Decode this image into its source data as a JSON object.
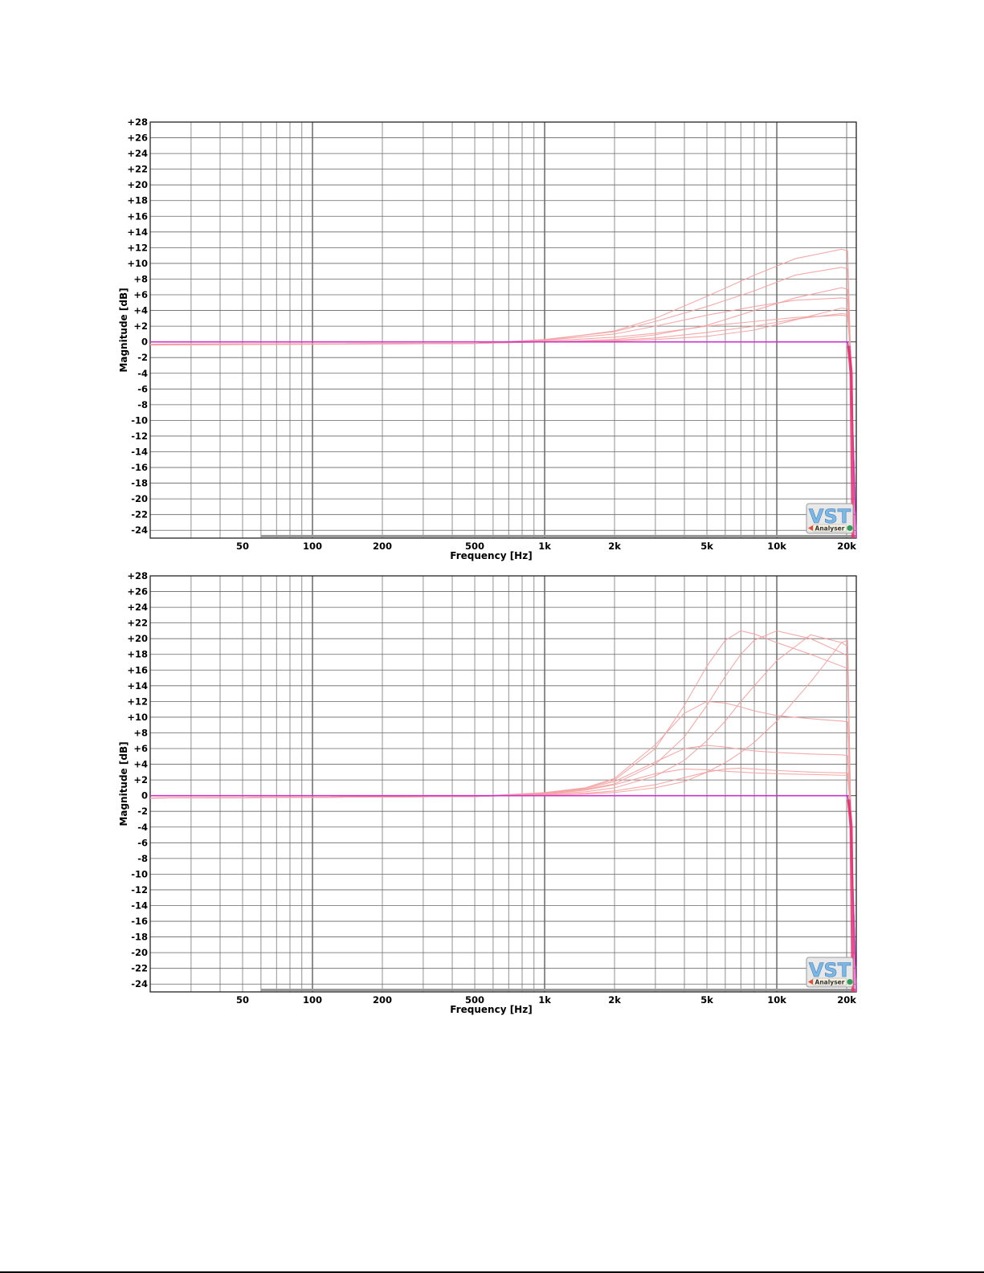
{
  "chart_data": [
    {
      "type": "line",
      "xscale": "log",
      "xlim": [
        20,
        22000
      ],
      "ylim": [
        -25,
        28
      ],
      "grid": true,
      "xlabel": "Frequency [Hz]",
      "ylabel": "Magnitude [dB]",
      "xticks": [
        {
          "value": 50,
          "label": "50"
        },
        {
          "value": 100,
          "label": "100"
        },
        {
          "value": 200,
          "label": "200"
        },
        {
          "value": 500,
          "label": "500"
        },
        {
          "value": 1000,
          "label": "1k"
        },
        {
          "value": 2000,
          "label": "2k"
        },
        {
          "value": 5000,
          "label": "5k"
        },
        {
          "value": 10000,
          "label": "10k"
        },
        {
          "value": 20000,
          "label": "20k"
        }
      ],
      "yticks": [
        28,
        26,
        24,
        22,
        20,
        18,
        16,
        14,
        12,
        10,
        8,
        6,
        4,
        2,
        0,
        -2,
        -4,
        -6,
        -8,
        -10,
        -12,
        -14,
        -16,
        -18,
        -20,
        -22,
        -24
      ],
      "ytick_labels": [
        "+28",
        "+26",
        "+24",
        "+22",
        "+20",
        "+18",
        "+16",
        "+14",
        "+12",
        "+10",
        "+8",
        "+6",
        "+4",
        "+2",
        "0",
        "-2",
        "-4",
        "-6",
        "-8",
        "-10",
        "-12",
        "-14",
        "-16",
        "-18",
        "-20",
        "-22",
        "-24"
      ],
      "logo": {
        "text": "VST",
        "subtext": "Analyser"
      },
      "colors": {
        "curves": "#f4a0a0",
        "reference": "#cc33cc",
        "rolloff": "#e8306a",
        "grid": "#555555"
      },
      "series": [
        {
          "x": [
            20,
            500,
            1000,
            2000,
            3000,
            5000,
            8000,
            12000,
            19000,
            20200,
            20800,
            22000
          ],
          "y": [
            -0.4,
            -0.2,
            0.3,
            1.3,
            2.6,
            4.5,
            6.5,
            8.5,
            9.5,
            9.3,
            -2,
            -25
          ]
        },
        {
          "x": [
            20,
            500,
            1000,
            2000,
            3000,
            5000,
            8000,
            12000,
            19000,
            20200,
            20800,
            22000
          ],
          "y": [
            -0.3,
            -0.2,
            0.2,
            1.0,
            2.0,
            3.4,
            4.5,
            5.3,
            5.6,
            5.5,
            -2,
            -25
          ]
        },
        {
          "x": [
            20,
            500,
            1000,
            2000,
            3000,
            5000,
            8000,
            12000,
            19000,
            20200,
            20800,
            22000
          ],
          "y": [
            -0.3,
            -0.2,
            0.1,
            0.6,
            1.1,
            2.0,
            2.6,
            3.1,
            3.4,
            3.3,
            -2,
            -25
          ]
        },
        {
          "x": [
            20,
            500,
            1000,
            2000,
            3000,
            5000,
            8000,
            12000,
            19000,
            20200,
            20800,
            22000
          ],
          "y": [
            -0.4,
            -0.2,
            0.2,
            1.4,
            3.0,
            5.8,
            8.5,
            10.6,
            11.8,
            11.6,
            -2,
            -25
          ]
        },
        {
          "x": [
            20,
            500,
            1000,
            2000,
            3000,
            5000,
            8000,
            12000,
            19000,
            20200,
            20800,
            22000
          ],
          "y": [
            -0.3,
            -0.2,
            0.0,
            0.3,
            0.9,
            2.1,
            4.0,
            5.6,
            6.9,
            6.7,
            -2,
            -25
          ]
        },
        {
          "x": [
            20,
            500,
            1000,
            2000,
            3000,
            5000,
            8000,
            12000,
            19000,
            20200,
            20800,
            22000
          ],
          "y": [
            -0.3,
            -0.2,
            0.0,
            0.2,
            0.5,
            1.2,
            2.0,
            2.9,
            3.6,
            3.5,
            -2,
            -25
          ]
        },
        {
          "x": [
            20,
            500,
            1000,
            2000,
            3000,
            5000,
            8000,
            12000,
            19000,
            20200,
            20800,
            22000
          ],
          "y": [
            -0.3,
            -0.2,
            0.0,
            0.1,
            0.3,
            0.7,
            1.5,
            2.8,
            4.3,
            4.2,
            -2,
            -25
          ]
        },
        {
          "x": [
            20,
            500,
            1000,
            2000,
            3000,
            5000,
            8000,
            12000,
            19000,
            20200,
            20800,
            22000
          ],
          "y": [
            0,
            0,
            0,
            0,
            0,
            0,
            0,
            0,
            0,
            0,
            -3,
            -25
          ]
        }
      ]
    },
    {
      "type": "line",
      "xscale": "log",
      "xlim": [
        20,
        22000
      ],
      "ylim": [
        -25,
        28
      ],
      "grid": true,
      "xlabel": "Frequency [Hz]",
      "ylabel": "Magnitude [dB]",
      "xticks": [
        {
          "value": 50,
          "label": "50"
        },
        {
          "value": 100,
          "label": "100"
        },
        {
          "value": 200,
          "label": "200"
        },
        {
          "value": 500,
          "label": "500"
        },
        {
          "value": 1000,
          "label": "1k"
        },
        {
          "value": 2000,
          "label": "2k"
        },
        {
          "value": 5000,
          "label": "5k"
        },
        {
          "value": 10000,
          "label": "10k"
        },
        {
          "value": 20000,
          "label": "20k"
        }
      ],
      "yticks": [
        28,
        26,
        24,
        22,
        20,
        18,
        16,
        14,
        12,
        10,
        8,
        6,
        4,
        2,
        0,
        -2,
        -4,
        -6,
        -8,
        -10,
        -12,
        -14,
        -16,
        -18,
        -20,
        -22,
        -24
      ],
      "ytick_labels": [
        "+28",
        "+26",
        "+24",
        "+22",
        "+20",
        "+18",
        "+16",
        "+14",
        "+12",
        "+10",
        "+8",
        "+6",
        "+4",
        "+2",
        "0",
        "-2",
        "-4",
        "-6",
        "-8",
        "-10",
        "-12",
        "-14",
        "-16",
        "-18",
        "-20",
        "-22",
        "-24"
      ],
      "logo": {
        "text": "VST",
        "subtext": "Analyser"
      },
      "colors": {
        "curves": "#f4a0a0",
        "reference": "#cc33cc",
        "rolloff": "#e8306a",
        "grid": "#555555"
      },
      "series": [
        {
          "x": [
            20,
            500,
            1000,
            1500,
            2000,
            3000,
            4000,
            5000,
            6000,
            7000,
            8000,
            10000,
            14000,
            19000,
            20200,
            20800,
            22000
          ],
          "y": [
            -0.3,
            -0.1,
            0.4,
            1.0,
            2.0,
            6.0,
            11.5,
            16.5,
            19.8,
            21.0,
            20.6,
            19.5,
            18.0,
            16.5,
            16.2,
            -2,
            -25
          ]
        },
        {
          "x": [
            20,
            500,
            1000,
            1500,
            2000,
            3000,
            4000,
            5000,
            6000,
            7000,
            8000,
            10000,
            14000,
            19000,
            20200,
            20800,
            22000
          ],
          "y": [
            -0.3,
            -0.1,
            0.3,
            0.8,
            1.5,
            4.0,
            7.5,
            11.5,
            15.2,
            18.0,
            19.8,
            21.0,
            20.0,
            18.2,
            17.8,
            -2,
            -25
          ]
        },
        {
          "x": [
            20,
            500,
            1000,
            1500,
            2000,
            3000,
            4000,
            5000,
            6000,
            7000,
            8000,
            10000,
            14000,
            19000,
            20200,
            20800,
            22000
          ],
          "y": [
            -0.3,
            -0.1,
            0.2,
            0.5,
            1.0,
            2.5,
            4.5,
            7.0,
            9.5,
            12.0,
            14.0,
            17.2,
            20.5,
            19.5,
            19.0,
            -2,
            -25
          ]
        },
        {
          "x": [
            20,
            500,
            1000,
            1500,
            2000,
            3000,
            4000,
            5000,
            6000,
            7000,
            8000,
            10000,
            14000,
            19000,
            20200,
            20800,
            22000
          ],
          "y": [
            -0.3,
            -0.1,
            0.1,
            0.2,
            0.4,
            1.0,
            1.8,
            3.0,
            4.2,
            5.5,
            6.8,
            9.5,
            14.5,
            19.5,
            19.8,
            -2,
            -25
          ]
        },
        {
          "x": [
            20,
            500,
            1000,
            1500,
            2000,
            3000,
            4000,
            5000,
            6000,
            7000,
            8000,
            10000,
            14000,
            19000,
            20200,
            20800,
            22000
          ],
          "y": [
            -0.3,
            -0.1,
            0.3,
            1.0,
            2.2,
            6.5,
            10.5,
            12.0,
            11.8,
            11.3,
            10.8,
            10.2,
            9.8,
            9.5,
            9.4,
            -2,
            -25
          ]
        },
        {
          "x": [
            20,
            500,
            1000,
            1500,
            2000,
            3000,
            4000,
            5000,
            6000,
            7000,
            8000,
            10000,
            14000,
            19000,
            20200,
            20800,
            22000
          ],
          "y": [
            -0.3,
            -0.1,
            0.3,
            0.9,
            1.8,
            4.3,
            6.0,
            6.4,
            6.2,
            5.9,
            5.7,
            5.5,
            5.3,
            5.2,
            5.1,
            -2,
            -25
          ]
        },
        {
          "x": [
            20,
            500,
            1000,
            1500,
            2000,
            3000,
            4000,
            5000,
            6000,
            7000,
            8000,
            10000,
            14000,
            19000,
            20200,
            20800,
            22000
          ],
          "y": [
            -0.3,
            -0.1,
            0.2,
            0.7,
            1.4,
            2.8,
            3.4,
            3.3,
            3.1,
            3.0,
            2.9,
            2.8,
            2.7,
            2.6,
            2.6,
            -2,
            -25
          ]
        },
        {
          "x": [
            20,
            500,
            1000,
            1500,
            2000,
            3000,
            4000,
            5000,
            6000,
            7000,
            8000,
            10000,
            14000,
            19000,
            20200,
            20800,
            22000
          ],
          "y": [
            -0.3,
            -0.1,
            0.1,
            0.3,
            0.6,
            1.4,
            2.3,
            3.0,
            3.4,
            3.5,
            3.4,
            3.2,
            3.0,
            2.9,
            2.9,
            -2,
            -25
          ]
        },
        {
          "x": [
            20,
            500,
            1000,
            1500,
            2000,
            3000,
            4000,
            5000,
            6000,
            7000,
            8000,
            10000,
            14000,
            19000,
            20200,
            20800,
            22000
          ],
          "y": [
            0,
            0,
            0,
            0,
            0,
            0,
            0,
            0,
            0,
            0,
            0,
            0,
            0,
            0,
            0,
            -3,
            -25
          ]
        }
      ]
    }
  ]
}
